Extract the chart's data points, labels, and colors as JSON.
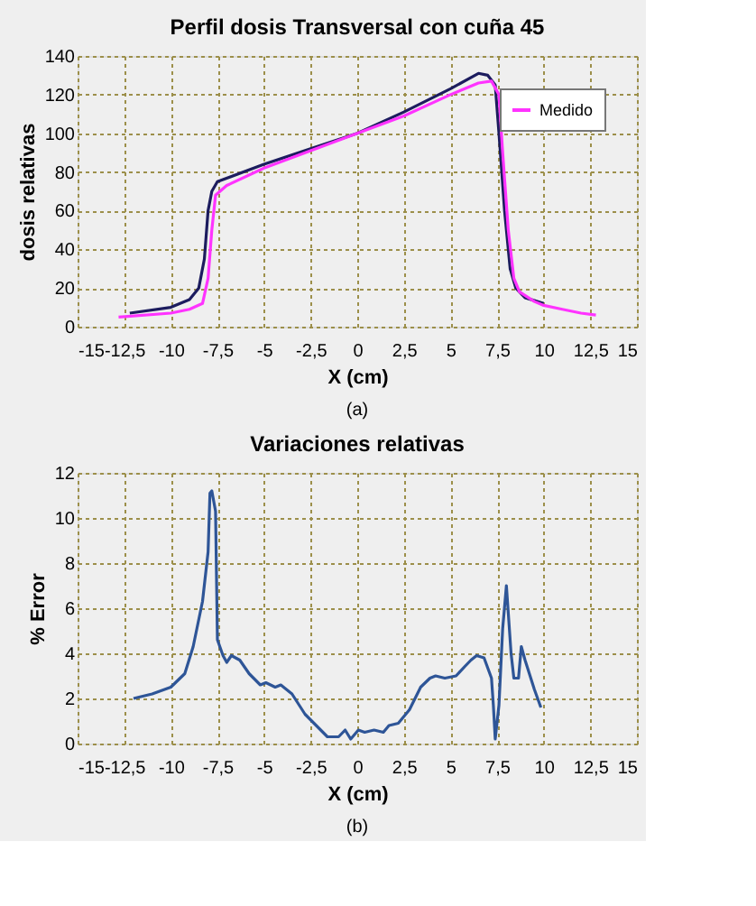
{
  "chart_data": [
    {
      "type": "line",
      "title": "Perfil dosis Transversal con cuña 45",
      "xlabel": "X (cm)",
      "ylabel": "dosis relativas",
      "annotations": [
        "(a)"
      ],
      "xlim": [
        -15,
        15
      ],
      "xticks": [
        -15,
        {
          "value": -12.5,
          "label": "-12,5"
        },
        -10,
        {
          "value": -7.5,
          "label": "-7,5"
        },
        -5,
        {
          "value": -2.5,
          "label": "-2,5"
        },
        0,
        {
          "value": 2.5,
          "label": "2,5"
        },
        5,
        {
          "value": 7.5,
          "label": "7,5"
        },
        10,
        {
          "value": 12.5,
          "label": "12,5"
        },
        15
      ],
      "ylim": [
        0,
        140
      ],
      "yticks": [
        0,
        20,
        40,
        60,
        80,
        100,
        120,
        140
      ],
      "grid": true,
      "legend": "right",
      "series": [
        {
          "color": "#1c1c5e",
          "x": [
            -12.2,
            -10,
            -9,
            -8.5,
            -8.2,
            -8,
            -7.8,
            -7.5,
            -5,
            -2.5,
            0,
            2.5,
            5,
            6.5,
            7,
            7.4,
            7.6,
            7.9,
            8.2,
            8.5,
            9,
            10
          ],
          "values": [
            7,
            10,
            14,
            20,
            35,
            60,
            70,
            75,
            84,
            92,
            100,
            111,
            123,
            131,
            130,
            125,
            100,
            60,
            30,
            20,
            15,
            12
          ]
        },
        {
          "name": "Medido",
          "color": "#ff33ff",
          "x": [
            -12.8,
            -10,
            -9,
            -8.3,
            -8,
            -7.8,
            -7.6,
            -7,
            -5,
            -2.5,
            0,
            2.5,
            5,
            6.5,
            7.2,
            7.6,
            7.8,
            8.1,
            8.4,
            8.7,
            9.5,
            10,
            11,
            12,
            12.8
          ],
          "values": [
            5,
            7,
            9,
            12,
            25,
            50,
            68,
            73,
            82,
            91,
            100,
            109,
            120,
            126,
            127,
            120,
            90,
            50,
            25,
            18,
            13,
            11,
            9,
            7,
            6
          ]
        }
      ]
    },
    {
      "type": "line",
      "title": "Variaciones relativas",
      "xlabel": "X (cm)",
      "ylabel": "% Error",
      "annotations": [
        "(b)"
      ],
      "xlim": [
        -15,
        15
      ],
      "xticks": [
        -15,
        {
          "value": -12.5,
          "label": "-12,5"
        },
        -10,
        {
          "value": -7.5,
          "label": "-7,5"
        },
        -5,
        {
          "value": -2.5,
          "label": "-2,5"
        },
        0,
        {
          "value": 2.5,
          "label": "2,5"
        },
        5,
        {
          "value": 7.5,
          "label": "7,5"
        },
        10,
        {
          "value": 12.5,
          "label": "12,5"
        },
        15
      ],
      "ylim": [
        0,
        12
      ],
      "yticks": [
        0,
        2,
        4,
        6,
        8,
        10,
        12
      ],
      "grid": true,
      "series": [
        {
          "color": "#2e5597",
          "x": [
            -12,
            -11,
            -10,
            -9.25,
            -8.8,
            -8.3,
            -8.0,
            -7.9,
            -7.8,
            -7.6,
            -7.5,
            -7.2,
            -7.0,
            -6.75,
            -6.3,
            -5.8,
            -5.2,
            -4.9,
            -4.4,
            -4.1,
            -3.5,
            -2.8,
            -2.2,
            -1.6,
            -1.0,
            -0.65,
            -0.35,
            0.06,
            0.4,
            0.9,
            1.4,
            1.7,
            2.2,
            2.8,
            3.4,
            3.9,
            4.2,
            4.7,
            5.3,
            5.75,
            6.1,
            6.4,
            6.8,
            7.2,
            7.3,
            7.4,
            7.6,
            7.8,
            8.0,
            8.25,
            8.4,
            8.65,
            8.8,
            9.0,
            9.5,
            9.85
          ],
          "values": [
            2.0,
            2.2,
            2.5,
            3.1,
            4.3,
            6.3,
            8.5,
            11.1,
            11.2,
            10.3,
            4.6,
            3.9,
            3.6,
            3.9,
            3.7,
            3.1,
            2.6,
            2.7,
            2.5,
            2.6,
            2.2,
            1.3,
            0.8,
            0.3,
            0.3,
            0.6,
            0.2,
            0.6,
            0.5,
            0.6,
            0.5,
            0.8,
            0.9,
            1.5,
            2.5,
            2.9,
            3.0,
            2.9,
            3.0,
            3.4,
            3.7,
            3.9,
            3.8,
            2.9,
            1.7,
            0.2,
            1.7,
            5.1,
            7.0,
            4.0,
            2.9,
            2.9,
            4.3,
            3.7,
            2.4,
            1.6
          ]
        }
      ]
    }
  ]
}
